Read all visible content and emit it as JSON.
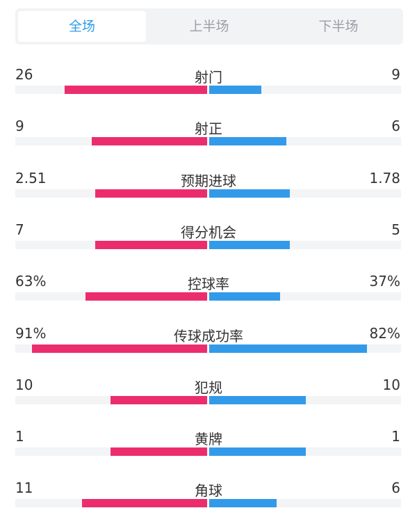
{
  "tabs": [
    {
      "label": "全场",
      "active": true
    },
    {
      "label": "上半场",
      "active": false
    },
    {
      "label": "下半场",
      "active": false
    }
  ],
  "colors": {
    "home": "#ec2d6d",
    "away": "#339aea",
    "active_tab": "#2f9be8"
  },
  "stats": [
    {
      "label": "射门",
      "home": "26",
      "away": "9",
      "home_fraction": 0.74,
      "away_fraction": 0.27
    },
    {
      "label": "射正",
      "home": "9",
      "away": "6",
      "home_fraction": 0.6,
      "away_fraction": 0.4
    },
    {
      "label": "预期进球",
      "home": "2.51",
      "away": "1.78",
      "home_fraction": 0.58,
      "away_fraction": 0.42
    },
    {
      "label": "得分机会",
      "home": "7",
      "away": "5",
      "home_fraction": 0.58,
      "away_fraction": 0.42
    },
    {
      "label": "控球率",
      "home": "63%",
      "away": "37%",
      "home_fraction": 0.63,
      "away_fraction": 0.37
    },
    {
      "label": "传球成功率",
      "home": "91%",
      "away": "82%",
      "home_fraction": 0.91,
      "away_fraction": 0.82
    },
    {
      "label": "犯规",
      "home": "10",
      "away": "10",
      "home_fraction": 0.5,
      "away_fraction": 0.5
    },
    {
      "label": "黄牌",
      "home": "1",
      "away": "1",
      "home_fraction": 0.5,
      "away_fraction": 0.5
    },
    {
      "label": "角球",
      "home": "11",
      "away": "6",
      "home_fraction": 0.65,
      "away_fraction": 0.35
    }
  ]
}
